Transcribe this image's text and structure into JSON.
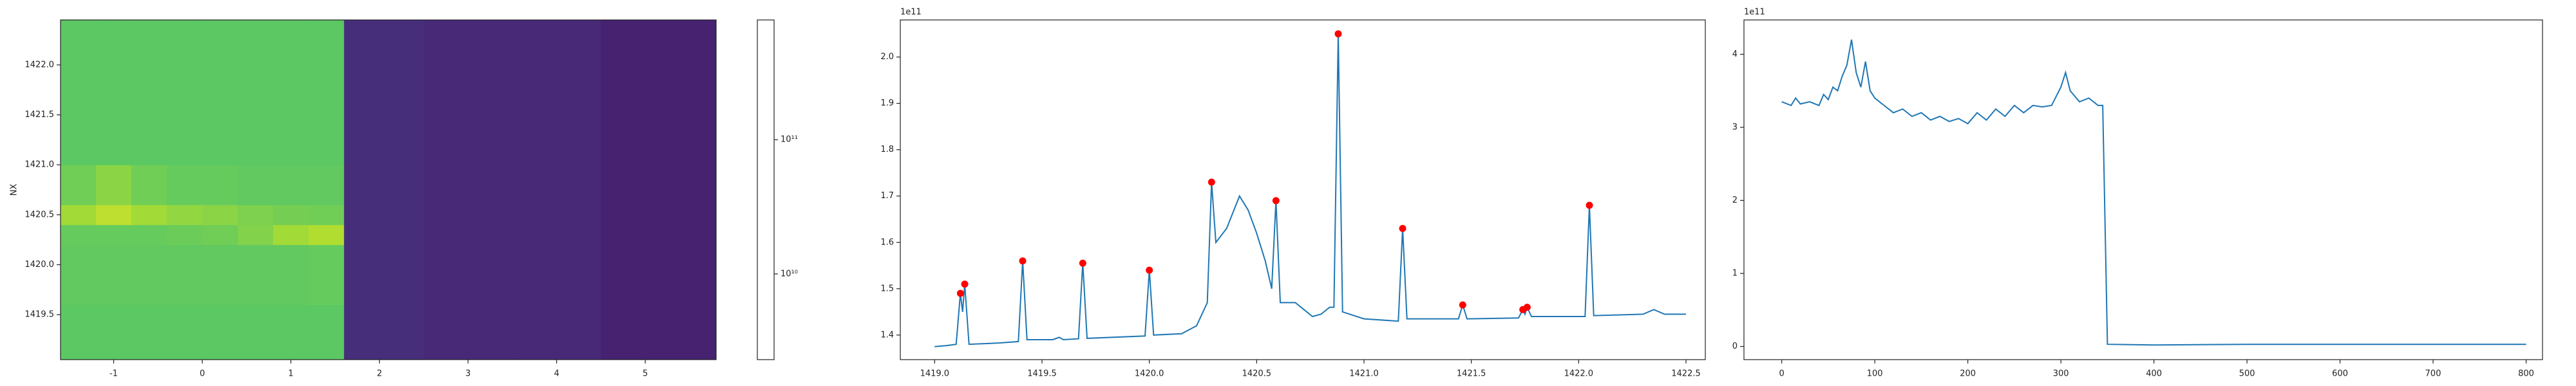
{
  "chart_data": [
    {
      "type": "heatmap",
      "ylabel": "NX",
      "xlim": [
        -1.6,
        5.8
      ],
      "ylim": [
        1419.05,
        1422.45
      ],
      "xticks": [
        -1,
        0,
        1,
        2,
        3,
        4,
        5
      ],
      "yticks": [
        1419.5,
        {
          "value": 1420,
          "label": "1420.0"
        },
        1420.5,
        {
          "value": 1421,
          "label": "1421.0"
        },
        1421.5,
        {
          "value": 1422,
          "label": "1422.0"
        }
      ],
      "x_edges": [
        -1.6,
        -1.2,
        -0.8,
        -0.4,
        0,
        0.4,
        0.8,
        1.2,
        1.6,
        2.5,
        3.5,
        4.5,
        5.8
      ],
      "y_edges": [
        1419.05,
        1419.6,
        1420.2,
        1420.4,
        1420.6,
        1421.0,
        1421.5,
        1422.45
      ],
      "z": [
        [
          180000000000,
          180000000000,
          180000000000,
          180000000000,
          180000000000,
          180000000000,
          180000000000,
          180000000000,
          5000000000,
          4500000000,
          4500000000,
          4000000000
        ],
        [
          190000000000,
          190000000000,
          190000000000,
          190000000000,
          190000000000,
          190000000000,
          190000000000,
          200000000000,
          5000000000,
          4500000000,
          4500000000,
          4000000000
        ],
        [
          200000000000,
          200000000000,
          200000000000,
          210000000000,
          220000000000,
          260000000000,
          350000000000,
          400000000000,
          5000000000,
          4500000000,
          4500000000,
          4000000000
        ],
        [
          350000000000,
          450000000000,
          350000000000,
          300000000000,
          280000000000,
          250000000000,
          230000000000,
          220000000000,
          5000000000,
          4500000000,
          4500000000,
          4000000000
        ],
        [
          220000000000,
          280000000000,
          220000000000,
          200000000000,
          200000000000,
          190000000000,
          190000000000,
          190000000000,
          5000000000,
          4500000000,
          4500000000,
          4000000000
        ],
        [
          180000000000,
          180000000000,
          180000000000,
          180000000000,
          180000000000,
          180000000000,
          180000000000,
          180000000000,
          5000000000,
          4500000000,
          4500000000,
          4000000000
        ],
        [
          180000000000,
          180000000000,
          180000000000,
          180000000000,
          180000000000,
          180000000000,
          180000000000,
          180000000000,
          5000000000,
          4500000000,
          4500000000,
          4000000000
        ]
      ],
      "colormap": "viridis",
      "log_color": true,
      "clim": [
        2300000000,
        780000000000
      ],
      "cticks": [
        {
          "value": 10000000000,
          "label": "10¹⁰"
        },
        {
          "value": 100000000000,
          "label": "10¹¹"
        }
      ]
    },
    {
      "type": "line",
      "offset_text": "1e11",
      "xlim": [
        1418.84,
        1422.59
      ],
      "ylim": [
        1.347,
        2.08
      ],
      "xticks": [
        {
          "value": 1419,
          "label": "1419.0"
        },
        1419.5,
        {
          "value": 1420,
          "label": "1420.0"
        },
        1420.5,
        {
          "value": 1421,
          "label": "1421.0"
        },
        1421.5,
        {
          "value": 1422,
          "label": "1422.0"
        },
        1422.5
      ],
      "yticks": [
        1.4,
        1.5,
        1.6,
        1.7,
        1.8,
        1.9,
        {
          "value": 2,
          "label": "2.0"
        }
      ],
      "series": [
        {
          "mode": "line",
          "color": "#1f77b4",
          "x": [
            1419.0,
            1419.05,
            1419.1,
            1419.12,
            1419.13,
            1419.14,
            1419.16,
            1419.3,
            1419.39,
            1419.41,
            1419.43,
            1419.55,
            1419.58,
            1419.6,
            1419.67,
            1419.69,
            1419.71,
            1419.98,
            1420.0,
            1420.02,
            1420.15,
            1420.22,
            1420.27,
            1420.29,
            1420.31,
            1420.36,
            1420.42,
            1420.46,
            1420.5,
            1420.54,
            1420.57,
            1420.59,
            1420.61,
            1420.68,
            1420.72,
            1420.76,
            1420.8,
            1420.84,
            1420.86,
            1420.88,
            1420.9,
            1421.0,
            1421.16,
            1421.18,
            1421.2,
            1421.44,
            1421.46,
            1421.48,
            1421.72,
            1421.74,
            1421.75,
            1421.76,
            1421.78,
            1421.9,
            1422.03,
            1422.05,
            1422.07,
            1422.3,
            1422.35,
            1422.4,
            1422.5
          ],
          "values": [
            1.375,
            1.377,
            1.38,
            1.49,
            1.45,
            1.51,
            1.38,
            1.383,
            1.386,
            1.56,
            1.39,
            1.39,
            1.395,
            1.39,
            1.392,
            1.555,
            1.393,
            1.398,
            1.54,
            1.4,
            1.403,
            1.42,
            1.47,
            1.73,
            1.6,
            1.63,
            1.7,
            1.67,
            1.62,
            1.56,
            1.5,
            1.69,
            1.47,
            1.47,
            1.455,
            1.44,
            1.445,
            1.46,
            1.46,
            2.05,
            1.45,
            1.435,
            1.43,
            1.63,
            1.435,
            1.435,
            1.465,
            1.435,
            1.437,
            1.455,
            1.445,
            1.46,
            1.44,
            1.44,
            1.44,
            1.68,
            1.442,
            1.445,
            1.455,
            1.445,
            1.445
          ]
        },
        {
          "mode": "markers",
          "color": "#ff0000",
          "x": [
            1419.12,
            1419.14,
            1419.41,
            1419.69,
            1420.0,
            1420.29,
            1420.59,
            1420.88,
            1421.18,
            1421.46,
            1421.74,
            1421.76,
            1422.05
          ],
          "values": [
            1.49,
            1.51,
            1.56,
            1.555,
            1.54,
            1.73,
            1.69,
            2.05,
            1.63,
            1.465,
            1.455,
            1.46,
            1.68
          ]
        }
      ]
    },
    {
      "type": "line",
      "offset_text": "1e11",
      "xlim": [
        -40.6,
        817.6
      ],
      "ylim": [
        -0.18,
        4.47
      ],
      "xticks": [
        0,
        100,
        200,
        300,
        400,
        500,
        600,
        700,
        800
      ],
      "yticks": [
        0,
        1,
        2,
        3,
        4
      ],
      "series": [
        {
          "mode": "line",
          "color": "#1f77b4",
          "x": [
            0,
            10,
            15,
            20,
            30,
            40,
            45,
            50,
            55,
            60,
            65,
            70,
            75,
            80,
            85,
            90,
            95,
            100,
            110,
            120,
            130,
            140,
            150,
            160,
            170,
            180,
            190,
            200,
            210,
            220,
            230,
            240,
            250,
            260,
            270,
            280,
            290,
            300,
            305,
            310,
            320,
            330,
            340,
            345,
            350,
            400,
            500,
            600,
            700,
            800
          ],
          "values": [
            3.35,
            3.3,
            3.4,
            3.32,
            3.35,
            3.3,
            3.45,
            3.38,
            3.55,
            3.5,
            3.7,
            3.85,
            4.2,
            3.75,
            3.55,
            3.9,
            3.5,
            3.4,
            3.3,
            3.2,
            3.25,
            3.15,
            3.2,
            3.1,
            3.15,
            3.08,
            3.12,
            3.05,
            3.2,
            3.1,
            3.25,
            3.15,
            3.3,
            3.2,
            3.3,
            3.28,
            3.3,
            3.55,
            3.75,
            3.5,
            3.35,
            3.4,
            3.3,
            3.3,
            0.03,
            0.02,
            0.03,
            0.03,
            0.03,
            0.03
          ]
        }
      ]
    }
  ]
}
